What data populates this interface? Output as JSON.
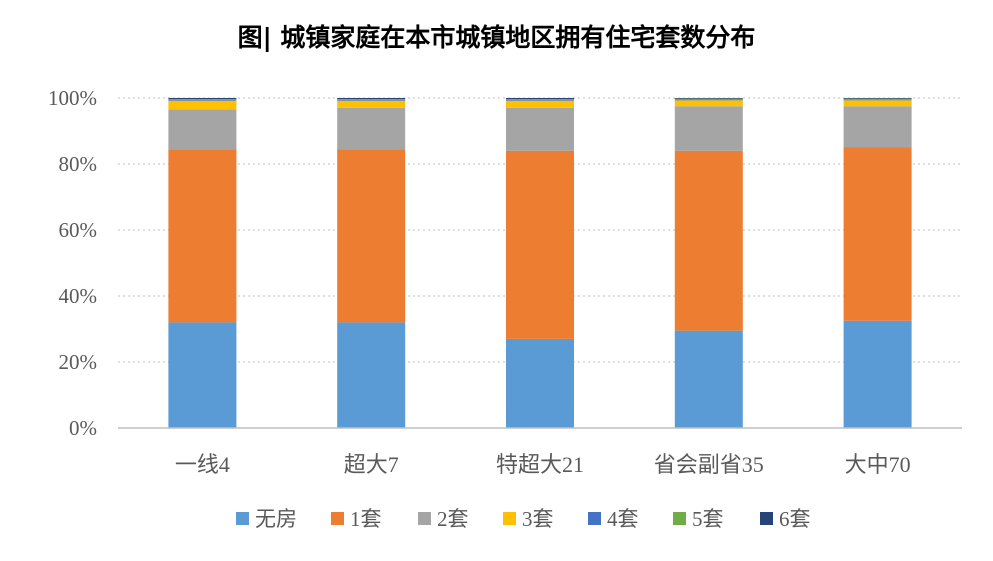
{
  "chart_data": {
    "type": "stacked-bar-100",
    "title": "图| 城镇家庭在本市城镇地区拥有住宅套数分布",
    "categories": [
      "一线4",
      "超大7",
      "特超大21",
      "省会副省35",
      "大中70"
    ],
    "ylim": [
      0,
      100
    ],
    "yticks": [
      0,
      20,
      40,
      60,
      80,
      100
    ],
    "ytick_labels": [
      "0%",
      "20%",
      "40%",
      "60%",
      "80%",
      "100%"
    ],
    "grid": true,
    "legend_position": "bottom",
    "series": [
      {
        "name": "无房",
        "color": "#5B9BD5",
        "values": [
          32.0,
          32.0,
          27.0,
          29.5,
          32.5
        ]
      },
      {
        "name": "1套",
        "color": "#ED7D31",
        "values": [
          52.5,
          52.5,
          57.0,
          54.5,
          52.5
        ]
      },
      {
        "name": "2套",
        "color": "#A5A5A5",
        "values": [
          12.0,
          12.5,
          13.0,
          13.5,
          12.5
        ]
      },
      {
        "name": "3套",
        "color": "#FFC000",
        "values": [
          2.7,
          2.2,
          2.2,
          1.8,
          1.8
        ]
      },
      {
        "name": "4套",
        "color": "#4472C4",
        "values": [
          0.3,
          0.3,
          0.3,
          0.3,
          0.2
        ]
      },
      {
        "name": "5套",
        "color": "#70AD47",
        "values": [
          0.2,
          0.2,
          0.2,
          0.2,
          0.3
        ]
      },
      {
        "name": "6套",
        "color": "#264478",
        "values": [
          0.3,
          0.3,
          0.3,
          0.2,
          0.2
        ]
      }
    ]
  }
}
